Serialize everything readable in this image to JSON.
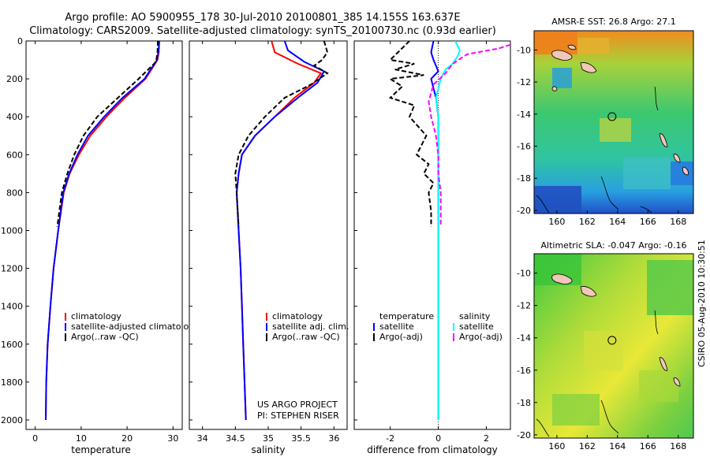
{
  "header": {
    "line1": "Argo profile: AO 5900955_178 30-Jul-2010 20100801_385 14.155S 163.637E",
    "line2": "Climatology: CARS2009. Satellite-adjusted climatology: synTS_20100730.nc (0.93d earlier)"
  },
  "side_label": "CSIRO 05-Aug-2010 10:30:51",
  "project": {
    "line1": "US ARGO PROJECT",
    "line2": "PI: STEPHEN RISER"
  },
  "colors": {
    "climatology": "#ff0000",
    "satellite": "#0000ff",
    "argo": "#000000",
    "sat_salinity": "#00ffff",
    "argo_salinity": "#ff00ff"
  },
  "chart_data": [
    {
      "id": "temperature",
      "type": "line",
      "xlabel": "temperature",
      "ylabel": "",
      "xlim": [
        -2,
        32
      ],
      "ylim": [
        2050,
        0
      ],
      "xticks": [
        0,
        10,
        20,
        30
      ],
      "yticks": [
        0,
        200,
        400,
        600,
        800,
        1000,
        1200,
        1400,
        1600,
        1800,
        2000
      ],
      "legend": [
        "climatology",
        "satellite-adjusted climatology",
        "Argo(..raw -QC)"
      ],
      "series": [
        {
          "name": "climatology",
          "color": "#ff0000",
          "dash": "",
          "x": [
            27.0,
            26.9,
            26.6,
            24.0,
            19.5,
            15.5,
            12.0,
            9.5,
            7.5,
            6.2,
            5.0,
            4.0,
            3.3,
            2.7,
            2.4,
            2.3
          ],
          "y": [
            0,
            60,
            100,
            200,
            300,
            400,
            500,
            600,
            700,
            800,
            1000,
            1200,
            1400,
            1600,
            1800,
            2000
          ]
        },
        {
          "name": "satellite-adjusted climatology",
          "color": "#0000ff",
          "dash": "",
          "x": [
            27.0,
            26.8,
            26.5,
            23.8,
            19.0,
            15.0,
            11.5,
            9.2,
            7.4,
            6.1,
            5.0,
            4.0,
            3.3,
            2.7,
            2.4,
            2.3
          ],
          "y": [
            0,
            60,
            100,
            200,
            300,
            400,
            500,
            600,
            700,
            800,
            1000,
            1200,
            1400,
            1600,
            1800,
            2000
          ]
        },
        {
          "name": "Argo(..raw -QC)",
          "color": "#000000",
          "dash": "6,3",
          "x": [
            26.7,
            26.6,
            26.3,
            22.5,
            18.0,
            13.5,
            10.5,
            8.5,
            7.0,
            5.8,
            4.8
          ],
          "y": [
            0,
            60,
            110,
            200,
            300,
            400,
            500,
            600,
            700,
            800,
            980
          ]
        }
      ]
    },
    {
      "id": "salinity",
      "type": "line",
      "xlabel": "salinity",
      "ylabel": "",
      "xlim": [
        33.8,
        36.2
      ],
      "ylim": [
        2050,
        0
      ],
      "xticks": [
        34,
        34.5,
        35,
        35.5,
        36
      ],
      "legend": [
        "climatology",
        "satellite adj. clim.",
        "Argo(..raw -QC)"
      ],
      "series": [
        {
          "name": "climatology",
          "color": "#ff0000",
          "dash": "",
          "x": [
            35.05,
            35.1,
            35.45,
            35.8,
            35.7,
            35.4,
            35.1,
            34.8,
            34.6,
            34.55,
            34.52,
            34.55,
            34.58,
            34.6,
            34.62,
            34.64,
            34.66
          ],
          "y": [
            0,
            60,
            120,
            170,
            220,
            300,
            400,
            500,
            600,
            700,
            800,
            1000,
            1200,
            1400,
            1600,
            1800,
            2000
          ]
        },
        {
          "name": "satellite adj. clim.",
          "color": "#0000ff",
          "dash": "",
          "x": [
            35.25,
            35.3,
            35.55,
            35.85,
            35.75,
            35.45,
            35.1,
            34.8,
            34.6,
            34.55,
            34.52,
            34.55,
            34.58,
            34.6,
            34.62,
            34.64,
            34.66
          ],
          "y": [
            0,
            50,
            110,
            160,
            220,
            300,
            400,
            500,
            600,
            700,
            800,
            1000,
            1200,
            1400,
            1600,
            1800,
            2000
          ]
        },
        {
          "name": "Argo(..raw -QC)",
          "color": "#000000",
          "dash": "6,3",
          "x": [
            35.85,
            35.9,
            35.82,
            35.7,
            35.9,
            35.65,
            35.25,
            34.95,
            34.7,
            34.55,
            34.5,
            34.52,
            34.55
          ],
          "y": [
            0,
            60,
            100,
            130,
            170,
            230,
            300,
            400,
            500,
            600,
            700,
            800,
            980
          ]
        }
      ]
    },
    {
      "id": "difference",
      "type": "line",
      "xlabel": "difference from climatology",
      "ylabel": "",
      "xlim": [
        -3.5,
        3
      ],
      "ylim": [
        2050,
        0
      ],
      "xticks": [
        -2,
        0,
        2
      ],
      "legend_left": [
        "temperature",
        "satellite",
        "Argo(-adj)"
      ],
      "legend_right": [
        "salinity",
        "satellite",
        "Argo(-adj)"
      ],
      "series": [
        {
          "name": "temperature satellite",
          "color": "#0000ff",
          "dash": "",
          "x": [
            -0.2,
            -0.3,
            -0.2,
            0.0,
            -0.3,
            -0.1,
            0.0,
            0.0,
            0.0,
            0.0,
            0.0
          ],
          "y": [
            0,
            60,
            100,
            160,
            200,
            300,
            400,
            600,
            800,
            1200,
            2000
          ]
        },
        {
          "name": "temperature Argo(-adj)",
          "color": "#000000",
          "dash": "6,3",
          "x": [
            -1.2,
            -2.0,
            -1.0,
            -1.8,
            -0.6,
            -2.0,
            -1.5,
            -2.0,
            -1.0,
            -1.2,
            -0.5,
            -0.9,
            -0.4,
            -0.6,
            -0.2,
            -0.4,
            -0.3,
            -0.3
          ],
          "y": [
            0,
            100,
            120,
            150,
            180,
            200,
            240,
            300,
            340,
            400,
            500,
            600,
            650,
            700,
            750,
            800,
            900,
            980
          ]
        },
        {
          "name": "salinity satellite",
          "color": "#00ffff",
          "dash": "",
          "x": [
            0.7,
            0.9,
            0.8,
            0.6,
            0.3,
            0.1,
            -0.1,
            0.0,
            0.0,
            0.0,
            0.0,
            0.0
          ],
          "y": [
            0,
            50,
            80,
            120,
            150,
            200,
            300,
            400,
            600,
            800,
            1200,
            2000
          ]
        },
        {
          "name": "salinity Argo(-adj)",
          "color": "#ff00ff",
          "dash": "6,3",
          "x": [
            3.0,
            2.5,
            1.2,
            0.6,
            0.3,
            -0.2,
            -0.4,
            -0.3,
            -0.1,
            0.0,
            0.0,
            0.1,
            0.1,
            0.1
          ],
          "y": [
            20,
            40,
            70,
            120,
            170,
            230,
            320,
            400,
            500,
            600,
            700,
            800,
            900,
            980
          ]
        }
      ]
    },
    {
      "id": "sst_map",
      "type": "heatmap",
      "title": "AMSR-E SST: 26.8  Argo: 27.1",
      "xticks": [
        160,
        162,
        164,
        166,
        168
      ],
      "yticks": [
        -10,
        -12,
        -14,
        -16,
        -18,
        -20
      ],
      "xlim": [
        158.5,
        169
      ],
      "ylim": [
        -20.2,
        -8.8
      ],
      "marker": {
        "lon": 163.637,
        "lat": -14.155
      }
    },
    {
      "id": "sla_map",
      "type": "heatmap",
      "title": "Altimetric SLA: -0.047  Argo: -0.16",
      "xticks": [
        160,
        162,
        164,
        166,
        168
      ],
      "yticks": [
        -10,
        -12,
        -14,
        -16,
        -18,
        -20
      ],
      "xlim": [
        158.5,
        169
      ],
      "ylim": [
        -20.2,
        -8.8
      ],
      "marker": {
        "lon": 163.637,
        "lat": -14.155
      }
    }
  ]
}
